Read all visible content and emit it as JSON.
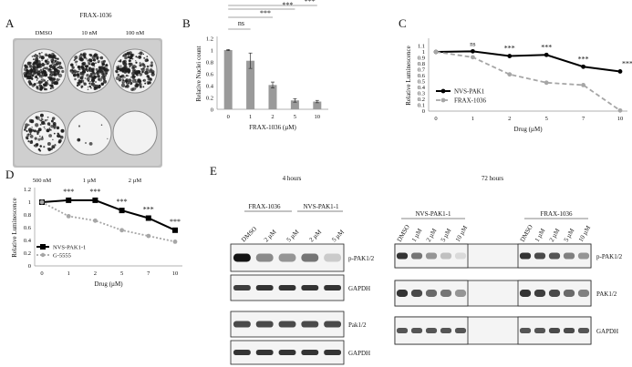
{
  "panel_letters": {
    "a": "A",
    "b": "B",
    "c": "C",
    "d": "D",
    "e": "E"
  },
  "panelA": {
    "title": "FRAX-1036",
    "top_labels": [
      "DMSO",
      "10 nM",
      "100 nM"
    ],
    "bottom_labels": [
      "500 nM",
      "1 µM",
      "2 µM"
    ]
  },
  "chart_data": [
    {
      "panel": "B",
      "type": "bar",
      "categories": [
        "0",
        "1",
        "2",
        "5",
        "10"
      ],
      "values": [
        1.0,
        0.82,
        0.41,
        0.15,
        0.13
      ],
      "errors": [
        0.01,
        0.13,
        0.05,
        0.03,
        0.02
      ],
      "xlabel": "FRAX-1036 (µM)",
      "ylabel": "Relative Nuclei count",
      "ylim": [
        0,
        1.2
      ],
      "yticks": [
        "0",
        "0.2",
        "0.4",
        "0.6",
        "0.8",
        "1",
        "1.2"
      ],
      "sig_ns": "ns",
      "sig_stars": [
        "***",
        "***",
        "***"
      ],
      "grid": false
    },
    {
      "panel": "C",
      "type": "line",
      "x": [
        "0",
        "1",
        "2",
        "5",
        "7",
        "10"
      ],
      "series": [
        {
          "name": "NVS-PAK1",
          "values": [
            1.0,
            1.01,
            0.93,
            0.95,
            0.75,
            0.67
          ],
          "color": "#000000"
        },
        {
          "name": "FRAX-1036",
          "values": [
            1.0,
            0.91,
            0.62,
            0.48,
            0.44,
            0.01
          ],
          "color": "#a6a6a6"
        }
      ],
      "xlabel": "Drug (µM)",
      "ylabel": "Relative Luminescence",
      "ylim": [
        0,
        1.2
      ],
      "yticks": [
        "0",
        "0.1",
        "0.2",
        "0.3",
        "0.4",
        "0.5",
        "0.6",
        "0.7",
        "0.8",
        "0.9",
        "1",
        "1.1"
      ],
      "annotations": [
        "ns",
        "***",
        "***",
        "***",
        "***"
      ],
      "legend": "center-left"
    },
    {
      "panel": "D",
      "type": "line",
      "x": [
        "0",
        "1",
        "2",
        "5",
        "7",
        "10"
      ],
      "series": [
        {
          "name": "NVS-PAK1-1",
          "values": [
            1.0,
            1.03,
            1.03,
            0.87,
            0.75,
            0.56
          ],
          "color": "#000000"
        },
        {
          "name": "G-5555",
          "values": [
            1.0,
            0.78,
            0.71,
            0.56,
            0.47,
            0.38
          ],
          "color": "#a6a6a6"
        }
      ],
      "xlabel": "Drug (µM)",
      "ylabel": "Relative Luminescence",
      "ylim": [
        0,
        1.2
      ],
      "yticks": [
        "0",
        "0.2",
        "0.4",
        "0.6",
        "0.8",
        "1",
        "1.2"
      ],
      "annotations": [
        "***",
        "***",
        "***",
        "***",
        "***"
      ],
      "legend": "bottom-left"
    }
  ],
  "panelE": {
    "left_title": "4 hours",
    "right_title": "72 hours",
    "left_groups": [
      "FRAX-1036",
      "NVS-PAK1-1"
    ],
    "left_lanes": [
      "DMSO",
      "2 µM",
      "5 µM",
      "2 µM",
      "5 µM"
    ],
    "left_bands": [
      "p-PAK1/2",
      "GAPDH",
      "Pak1/2",
      "GAPDH"
    ],
    "right_groups": [
      "NVS-PAK1-1",
      "FRAX-1036"
    ],
    "right_lanes_a": [
      "DMSO",
      "1 µM",
      "2 µM",
      "5 µM",
      "10 µM"
    ],
    "right_lanes_b": [
      "DMSO",
      "1 µM",
      "2 µM",
      "5 µM",
      "10 µM"
    ],
    "right_bands": [
      "p-PAK1/2",
      "PAK1/2",
      "GAPDH"
    ]
  }
}
